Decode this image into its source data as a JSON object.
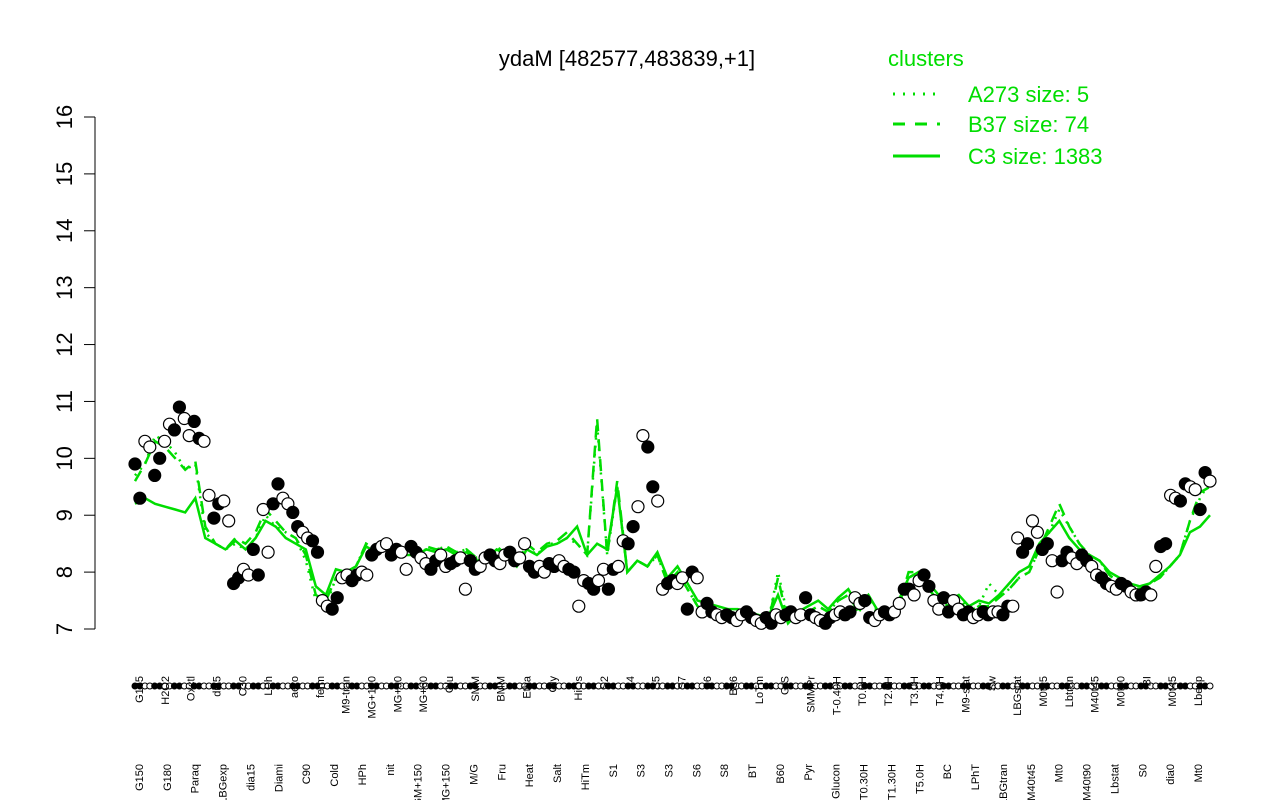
{
  "chart_data": {
    "type": "line",
    "title": "ydaM [482577,483839,+1]",
    "xlabel": "",
    "ylabel": "",
    "ylim": [
      7,
      16
    ],
    "yticks": [
      7,
      8,
      9,
      10,
      11,
      12,
      13,
      14,
      15,
      16
    ],
    "grid": false,
    "legend": {
      "title": "clusters",
      "placement": "top-right",
      "entries": [
        {
          "label": "A273 size: 5",
          "style": "dotted",
          "color": "#00dd00"
        },
        {
          "label": "B37 size: 74",
          "style": "dashed",
          "color": "#00dd00"
        },
        {
          "label": "C3 size: 1383",
          "style": "solid",
          "color": "#00dd00"
        }
      ]
    },
    "x_tick_labels_lower": [
      "G150",
      "G180",
      "Paraq",
      "LBGexp",
      "dia15",
      "Diami",
      "C90",
      "Cold",
      "HPh",
      "nit",
      "GM+150",
      "MG+150",
      "M/G",
      "Fru",
      "Heat",
      "Salt",
      "HiTm",
      "S1",
      "S3",
      "S3",
      "S6",
      "S8",
      "BT",
      "B60",
      "Pyr",
      "Glucon",
      "T0.30H",
      "T1.30H",
      "T5.0H",
      "BC",
      "LPhT",
      "LBGtran",
      "M40t45",
      "Mt0",
      "M40t90",
      "Lbstat",
      "S0",
      "dia0",
      "Mt0"
    ],
    "x_tick_labels_upper": [
      "G135",
      "H2O2",
      "Oxctl",
      "dia5",
      "C30",
      "LPh",
      "aero",
      "ferm",
      "M9-tran",
      "MG+120",
      "MG+90",
      "MG+60",
      "Glu",
      "SMM",
      "BMM",
      "Etha",
      "Gly",
      "HiOs",
      "S2",
      "S4",
      "S5",
      "S7",
      "S6",
      "B36",
      "LoTm",
      "G/S",
      "SMMPr",
      "T-0.40H",
      "T0.0H",
      "T2.0H",
      "T3.0H",
      "T4.0H",
      "M9-stat",
      "Sw",
      "LBGstat",
      "M0t45",
      "Lbtran",
      "M40t45",
      "M0t90",
      "BI",
      "M0t45",
      "Lbexp"
    ],
    "series": [
      {
        "name": "C3 size: 1383",
        "style": "solid",
        "values": [
          9.2,
          9.3,
          9.2,
          9.15,
          9.1,
          9.05,
          9.3,
          8.6,
          8.5,
          8.4,
          8.55,
          8.4,
          8.6,
          8.9,
          8.8,
          8.6,
          8.5,
          8.4,
          7.75,
          7.6,
          8.05,
          8.0,
          8.1,
          8.45,
          8.35,
          8.4,
          8.3,
          8.3,
          8.3,
          8.4,
          8.35,
          8.4,
          8.3,
          8.35,
          8.2,
          8.25,
          8.4,
          8.3,
          8.1,
          8.4,
          8.3,
          8.45,
          8.5,
          8.6,
          8.8,
          8.3,
          8.5,
          8.4,
          9.5,
          8.0,
          8.2,
          8.1,
          8.35,
          7.9,
          8.1,
          7.8,
          7.5,
          7.45,
          7.4,
          7.35,
          7.35,
          7.3,
          7.25,
          7.2,
          7.6,
          7.1,
          7.3,
          7.4,
          7.5,
          7.35,
          7.55,
          7.7,
          7.4,
          7.6,
          7.3,
          7.25,
          7.5,
          7.9,
          8.0,
          7.8,
          7.6,
          7.5,
          7.6,
          7.4,
          7.5,
          7.45,
          7.6,
          7.8,
          8.0,
          8.1,
          8.5,
          8.7,
          8.9,
          8.6,
          8.4,
          8.3,
          8.2,
          8.0,
          7.9,
          7.8,
          7.75,
          7.8,
          7.95,
          8.1,
          8.3,
          8.7,
          8.8,
          9.0
        ]
      },
      {
        "name": "B37 size: 74",
        "style": "dashed",
        "values": [
          9.6,
          9.9,
          10.3,
          10.2,
          10.0,
          9.8,
          9.95,
          8.8,
          8.5,
          8.4,
          8.6,
          8.5,
          8.7,
          9.1,
          8.9,
          8.7,
          8.6,
          8.3,
          7.6,
          7.5,
          7.9,
          8.0,
          8.1,
          8.5,
          8.4,
          8.5,
          8.4,
          8.4,
          8.35,
          8.45,
          8.4,
          8.45,
          8.35,
          8.4,
          8.25,
          8.3,
          8.45,
          8.3,
          8.2,
          8.5,
          8.35,
          8.5,
          8.55,
          8.7,
          8.5,
          8.3,
          10.7,
          8.3,
          9.6,
          8.0,
          8.2,
          8.1,
          8.3,
          7.8,
          8.0,
          7.7,
          7.4,
          7.3,
          7.25,
          7.3,
          7.2,
          7.25,
          7.15,
          7.1,
          7.9,
          7.1,
          7.3,
          7.3,
          7.4,
          7.3,
          7.5,
          7.6,
          7.3,
          7.5,
          7.25,
          7.2,
          7.4,
          8.0,
          8.0,
          7.7,
          7.5,
          7.4,
          7.5,
          7.3,
          7.4,
          7.4,
          7.55,
          7.7,
          7.9,
          8.0,
          8.4,
          8.8,
          9.2,
          8.8,
          8.5,
          8.3,
          8.2,
          7.95,
          7.8,
          7.75,
          7.7,
          7.8,
          7.9,
          8.1,
          8.3,
          8.9,
          9.4,
          9.5
        ]
      },
      {
        "name": "A273 size: 5",
        "style": "dotted",
        "values": [
          9.7,
          9.9,
          10.4,
          10.3,
          10.1,
          9.8,
          9.9,
          8.7,
          8.5,
          8.4,
          8.5,
          8.4,
          8.6,
          9.0,
          8.8,
          8.7,
          8.6,
          8.2,
          7.5,
          7.4,
          7.9,
          8.0,
          8.1,
          8.5,
          8.4,
          8.5,
          8.4,
          8.4,
          8.35,
          8.4,
          8.4,
          8.45,
          8.35,
          8.4,
          8.25,
          8.3,
          8.4,
          8.3,
          8.2,
          8.45,
          8.3,
          8.5,
          8.5,
          8.6,
          8.5,
          8.3,
          10.6,
          8.3,
          9.5,
          8.0,
          8.2,
          8.1,
          8.3,
          7.8,
          8.0,
          7.7,
          7.4,
          7.3,
          7.25,
          7.3,
          7.2,
          7.25,
          7.15,
          7.1,
          8.0,
          7.2,
          7.3,
          7.3,
          7.4,
          7.3,
          7.5,
          7.6,
          7.3,
          7.5,
          7.3,
          7.2,
          7.4,
          7.9,
          8.0,
          7.7,
          7.5,
          7.4,
          7.6,
          7.3,
          7.4,
          7.8,
          7.6,
          7.7,
          7.9,
          8.0,
          8.4,
          8.7,
          9.1,
          8.8,
          8.5,
          8.3,
          8.2,
          7.95,
          7.8,
          7.75,
          7.7,
          7.8,
          7.9,
          8.1,
          8.3,
          8.9,
          9.3,
          9.6
        ]
      }
    ],
    "points": [
      [
        9.9,
        9.3,
        10.3,
        10.2,
        9.7,
        10.0,
        10.3,
        10.6,
        10.5,
        10.9,
        10.7,
        10.4,
        10.65,
        10.35,
        10.3,
        9.35,
        8.95,
        9.2,
        9.25,
        8.9,
        7.8,
        7.9,
        8.05,
        7.95,
        8.4,
        7.95,
        9.1,
        8.35,
        9.2,
        9.55,
        9.3,
        9.2,
        9.05,
        8.8,
        8.7,
        8.6,
        8.55,
        8.35,
        7.5,
        7.4,
        7.35,
        7.55,
        7.9,
        7.95,
        7.85,
        7.95,
        8.0,
        7.95,
        8.3,
        8.4,
        8.45,
        8.5,
        8.3,
        8.4,
        8.35,
        8.05,
        8.45,
        8.35,
        8.25,
        8.15,
        8.05,
        8.2,
        8.3,
        8.1,
        8.15,
        8.2,
        8.25,
        7.7,
        8.2,
        8.05,
        8.1,
        8.25,
        8.3,
        8.2,
        8.15,
        8.3,
        8.35,
        8.2,
        8.25,
        8.5,
        8.1,
        8.0,
        8.1,
        8.0,
        8.15,
        8.1,
        8.2,
        8.1,
        8.05,
        8.0,
        7.4,
        7.85,
        7.8,
        7.7,
        7.85,
        8.05,
        7.7,
        8.05,
        8.1,
        8.55,
        8.5,
        8.8,
        9.15,
        10.4,
        10.2,
        9.5,
        9.25,
        7.7,
        7.8,
        7.85,
        7.8,
        7.9,
        7.35,
        8.0,
        7.9,
        7.3,
        7.45,
        7.3,
        7.25,
        7.2,
        7.25,
        7.2,
        7.15,
        7.25,
        7.3,
        7.2,
        7.15,
        7.1,
        7.2,
        7.1,
        7.25,
        7.2,
        7.25,
        7.3,
        7.2,
        7.25,
        7.55,
        7.25,
        7.2,
        7.15,
        7.1,
        7.2,
        7.25,
        7.3,
        7.25,
        7.3,
        7.55,
        7.45,
        7.5,
        7.2,
        7.15,
        7.25,
        7.3,
        7.25,
        7.3,
        7.45,
        7.7,
        7.7,
        7.6,
        7.85,
        7.95,
        7.75,
        7.5,
        7.35,
        7.55,
        7.3,
        7.5,
        7.35,
        7.25,
        7.3,
        7.2,
        7.25,
        7.3,
        7.25,
        7.3,
        7.3,
        7.25,
        7.4,
        7.4,
        8.6,
        8.35,
        8.5,
        8.9,
        8.7,
        8.4,
        8.5,
        8.2,
        7.65,
        8.2,
        8.35,
        8.25,
        8.15,
        8.3,
        8.2,
        8.1,
        7.95,
        7.9,
        7.8,
        7.75,
        7.7,
        7.8,
        7.75,
        7.65,
        7.6,
        7.6,
        7.65,
        7.6,
        8.1,
        8.45,
        8.5,
        9.35,
        9.3,
        9.25,
        9.55,
        9.5,
        9.45,
        9.1,
        9.75,
        9.6
      ]
    ]
  }
}
